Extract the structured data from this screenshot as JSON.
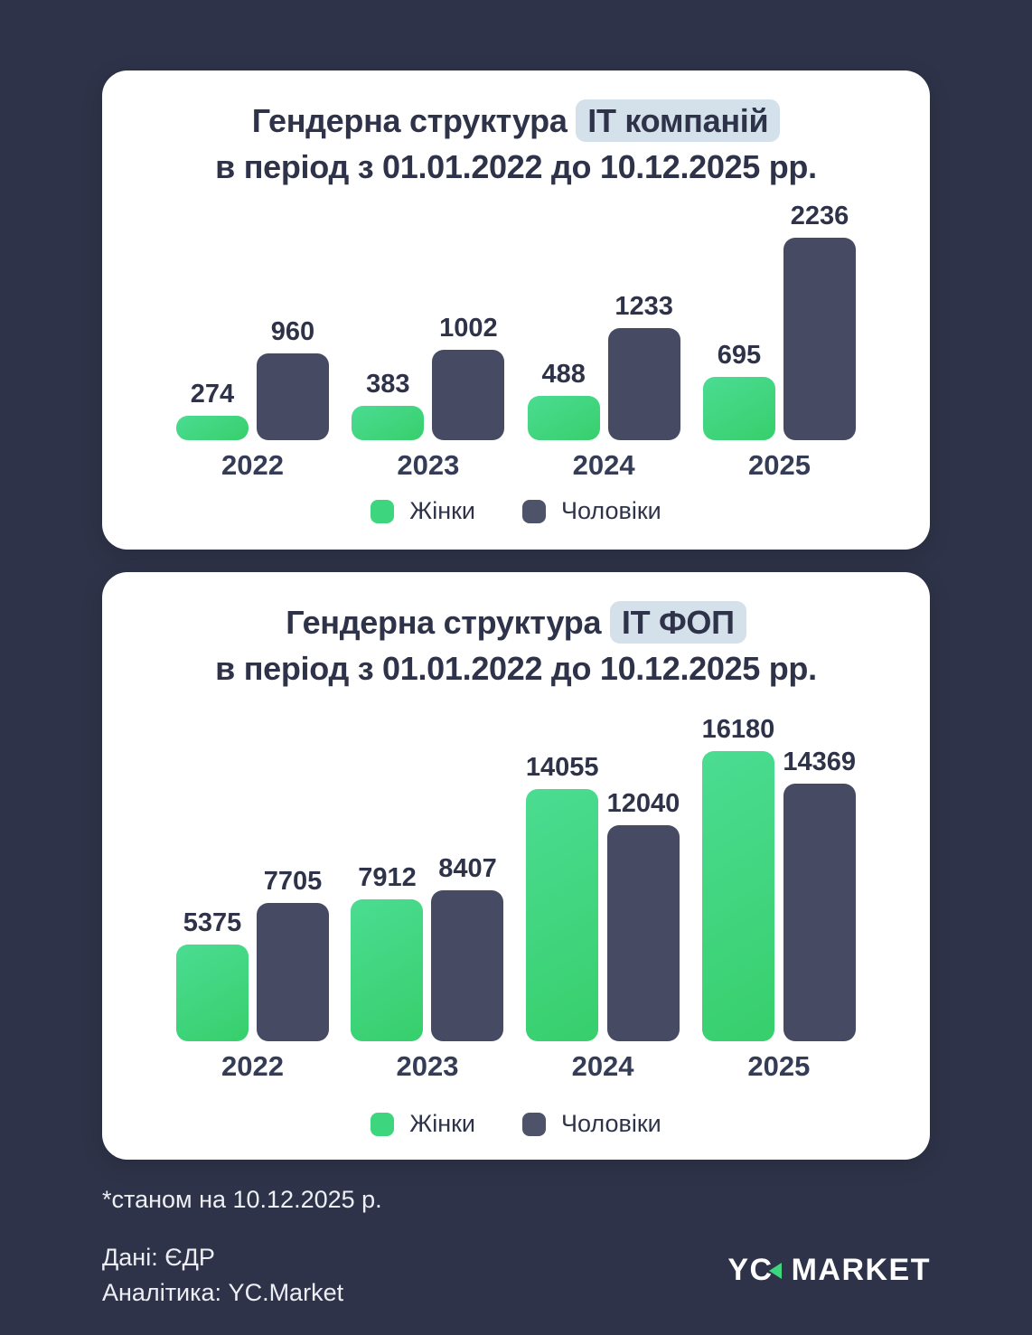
{
  "colors": {
    "background": "#2e3349",
    "card": "#ffffff",
    "accent_green": "#3dd67f",
    "bar_men": "#464b63",
    "title_text": "#2e3349",
    "highlight_bg": "#d4e0ea"
  },
  "charts": [
    {
      "title_prefix": "Гендерна структура",
      "title_highlight": "ІТ компаній",
      "title_line2": "в період з 01.01.2022 до 10.12.2025 рр."
    },
    {
      "title_prefix": "Гендерна структура",
      "title_highlight": "ІТ ФОП",
      "title_line2": "в період з 01.01.2022 до 10.12.2025 рр."
    }
  ],
  "chart_data": [
    {
      "type": "bar",
      "title": "Гендерна структура ІТ компаній в період з 01.01.2022 до 10.12.2025 рр.",
      "categories": [
        "2022",
        "2023",
        "2024",
        "2025"
      ],
      "series": [
        {
          "name": "Жінки",
          "color": "#3dd67f",
          "values": [
            274,
            383,
            488,
            695
          ]
        },
        {
          "name": "Чоловіки",
          "color": "#464b63",
          "values": [
            960,
            1002,
            1233,
            2236
          ]
        }
      ],
      "value_labels": true,
      "grid": false,
      "legend_position": "bottom",
      "ylim": [
        0,
        2236
      ]
    },
    {
      "type": "bar",
      "title": "Гендерна структура ІТ ФОП в період з 01.01.2022 до 10.12.2025 рр.",
      "categories": [
        "2022",
        "2023",
        "2024",
        "2025"
      ],
      "series": [
        {
          "name": "Жінки",
          "color": "#3dd67f",
          "values": [
            5375,
            7912,
            14055,
            16180
          ]
        },
        {
          "name": "Чоловіки",
          "color": "#464b63",
          "values": [
            7705,
            8407,
            12040,
            14369
          ]
        }
      ],
      "value_labels": true,
      "grid": false,
      "legend_position": "bottom",
      "ylim": [
        0,
        16180
      ]
    }
  ],
  "footer": {
    "footnote": "*станом на 10.12.2025 р.",
    "data_source": "Дані: ЄДР",
    "analytics": "Аналітика: YC.Market",
    "logo_text_1": "YC",
    "logo_text_2": "MARKET"
  }
}
